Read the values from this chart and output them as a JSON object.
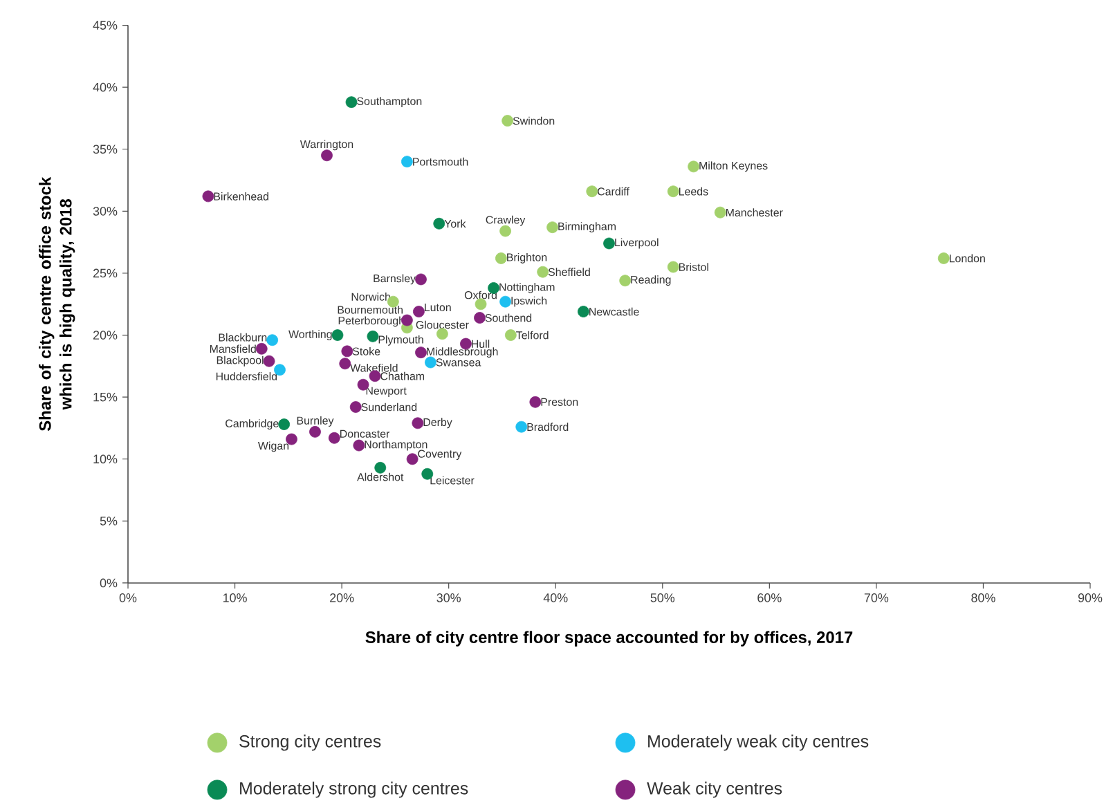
{
  "chart_data": {
    "type": "scatter",
    "xlabel": "Share of city centre floor space accounted for by offices,  2017",
    "ylabel": "Share of city centre office stock which is high quality,  2018",
    "xlim": [
      0,
      90
    ],
    "ylim": [
      0,
      45
    ],
    "xticks": [
      {
        "value": 0,
        "label": "0%"
      },
      {
        "value": 10,
        "label": "10%"
      },
      {
        "value": 20,
        "label": "20%"
      },
      {
        "value": 30,
        "label": "30%"
      },
      {
        "value": 40,
        "label": "40%"
      },
      {
        "value": 50,
        "label": "50%"
      },
      {
        "value": 60,
        "label": "60%"
      },
      {
        "value": 70,
        "label": "70%"
      },
      {
        "value": 80,
        "label": "80%"
      },
      {
        "value": 90,
        "label": "90%"
      }
    ],
    "yticks": [
      {
        "value": 0,
        "label": "0%"
      },
      {
        "value": 5,
        "label": "5%"
      },
      {
        "value": 10,
        "label": "10%"
      },
      {
        "value": 15,
        "label": "15%"
      },
      {
        "value": 20,
        "label": "20%"
      },
      {
        "value": 25,
        "label": "25%"
      },
      {
        "value": 30,
        "label": "30%"
      },
      {
        "value": 35,
        "label": "35%"
      },
      {
        "value": 40,
        "label": "40%"
      },
      {
        "value": 45,
        "label": "45%"
      }
    ],
    "grid": false,
    "legend": "bottom",
    "marker": "circle",
    "series": [
      {
        "name": "Strong city centres",
        "color": "#a3d16b",
        "x": [
          35.5,
          35.3,
          39.7,
          34.9,
          38.8,
          24.8,
          33.0,
          26.1,
          29.4,
          35.8,
          52.9,
          43.4,
          51.0,
          55.4,
          76.3,
          51.0,
          46.5
        ],
        "values": [
          37.3,
          28.4,
          28.7,
          26.2,
          25.1,
          22.7,
          22.5,
          20.6,
          20.1,
          20.0,
          33.6,
          31.6,
          31.6,
          29.9,
          26.2,
          25.5,
          24.4
        ]
      },
      {
        "name": "Moderately strong city centres",
        "color": "#0a8a55",
        "x": [
          20.9,
          29.1,
          34.2,
          42.6,
          45.0,
          19.6,
          22.9,
          14.6,
          23.6,
          28.0
        ],
        "values": [
          38.8,
          29.0,
          23.8,
          21.9,
          27.4,
          20.0,
          19.9,
          12.8,
          9.3,
          8.8
        ]
      },
      {
        "name": "Moderately weak city centres",
        "color": "#1ebff0",
        "x": [
          26.1,
          35.3,
          13.5,
          14.2,
          28.3,
          36.8
        ],
        "values": [
          34.0,
          22.7,
          19.6,
          17.2,
          17.8,
          12.6
        ]
      },
      {
        "name": "Weak city centres",
        "color": "#85237d",
        "x": [
          18.6,
          7.5,
          27.4,
          27.2,
          26.1,
          32.9,
          31.6,
          27.4,
          12.5,
          13.2,
          20.5,
          20.3,
          23.1,
          22.0,
          21.3,
          38.1,
          17.5,
          19.3,
          15.3,
          21.6,
          26.6,
          27.1
        ],
        "values": [
          34.5,
          31.2,
          24.5,
          21.9,
          21.2,
          21.4,
          19.3,
          18.6,
          18.9,
          17.9,
          18.7,
          17.7,
          16.7,
          16.0,
          14.2,
          14.6,
          12.2,
          11.7,
          11.6,
          11.1,
          10.0,
          12.9
        ]
      }
    ],
    "annotations": [
      {
        "text": "Swindon",
        "x": 35.5,
        "y": 37.3
      },
      {
        "text": "Crawley",
        "x": 35.3,
        "y": 28.4
      },
      {
        "text": "Birmingham",
        "x": 39.7,
        "y": 28.7
      },
      {
        "text": "Brighton",
        "x": 34.9,
        "y": 26.2
      },
      {
        "text": "Sheffield",
        "x": 38.8,
        "y": 25.1
      },
      {
        "text": "Norwich",
        "x": 24.8,
        "y": 22.7
      },
      {
        "text": "Oxford",
        "x": 33.0,
        "y": 22.5
      },
      {
        "text": "Peterborough",
        "x": 26.1,
        "y": 20.6
      },
      {
        "text": "Gloucester",
        "x": 29.4,
        "y": 20.1
      },
      {
        "text": "Telford",
        "x": 35.8,
        "y": 20.0
      },
      {
        "text": "Milton Keynes",
        "x": 52.9,
        "y": 33.6
      },
      {
        "text": "Cardiff",
        "x": 43.4,
        "y": 31.6
      },
      {
        "text": "Leeds",
        "x": 51.0,
        "y": 31.6
      },
      {
        "text": "Manchester",
        "x": 55.4,
        "y": 29.9
      },
      {
        "text": "London",
        "x": 76.3,
        "y": 26.2
      },
      {
        "text": "Bristol",
        "x": 51.0,
        "y": 25.5
      },
      {
        "text": "Reading",
        "x": 46.5,
        "y": 24.4
      },
      {
        "text": "Southampton",
        "x": 20.9,
        "y": 38.8
      },
      {
        "text": "York",
        "x": 29.1,
        "y": 29.0
      },
      {
        "text": "Nottingham",
        "x": 34.2,
        "y": 23.8
      },
      {
        "text": "Newcastle",
        "x": 42.6,
        "y": 21.9
      },
      {
        "text": "Liverpool",
        "x": 45.0,
        "y": 27.4
      },
      {
        "text": "Worthing",
        "x": 19.6,
        "y": 20.0
      },
      {
        "text": "Plymouth",
        "x": 22.9,
        "y": 19.9
      },
      {
        "text": "Cambridge",
        "x": 14.6,
        "y": 12.8
      },
      {
        "text": "Aldershot",
        "x": 23.6,
        "y": 9.3
      },
      {
        "text": "Leicester",
        "x": 28.0,
        "y": 8.8
      },
      {
        "text": "Portsmouth",
        "x": 26.1,
        "y": 34.0
      },
      {
        "text": "Ipswich",
        "x": 35.3,
        "y": 22.7
      },
      {
        "text": "Blackburn",
        "x": 13.5,
        "y": 19.6
      },
      {
        "text": "Huddersfield",
        "x": 14.2,
        "y": 17.2
      },
      {
        "text": "Swansea",
        "x": 28.3,
        "y": 17.8
      },
      {
        "text": "Bradford",
        "x": 36.8,
        "y": 12.6
      },
      {
        "text": "Warrington",
        "x": 18.6,
        "y": 34.5
      },
      {
        "text": "Birkenhead",
        "x": 7.5,
        "y": 31.2
      },
      {
        "text": "Barnsley",
        "x": 27.4,
        "y": 24.5
      },
      {
        "text": "Luton",
        "x": 27.2,
        "y": 21.9
      },
      {
        "text": "Bournemouth",
        "x": 26.1,
        "y": 21.2
      },
      {
        "text": "Southend",
        "x": 32.9,
        "y": 21.4
      },
      {
        "text": "Hull",
        "x": 31.6,
        "y": 19.3
      },
      {
        "text": "Middlesbrough",
        "x": 27.4,
        "y": 18.6
      },
      {
        "text": "Mansfield",
        "x": 12.5,
        "y": 18.9
      },
      {
        "text": "Blackpool",
        "x": 13.2,
        "y": 17.9
      },
      {
        "text": "Stoke",
        "x": 20.5,
        "y": 18.7
      },
      {
        "text": "Wakefield",
        "x": 20.3,
        "y": 17.7
      },
      {
        "text": "Chatham",
        "x": 23.1,
        "y": 16.7
      },
      {
        "text": "Newport",
        "x": 22.0,
        "y": 16.0
      },
      {
        "text": "Sunderland",
        "x": 21.3,
        "y": 14.2
      },
      {
        "text": "Preston",
        "x": 38.1,
        "y": 14.6
      },
      {
        "text": "Burnley",
        "x": 17.5,
        "y": 12.2
      },
      {
        "text": "Doncaster",
        "x": 19.3,
        "y": 11.7
      },
      {
        "text": "Wigan",
        "x": 15.3,
        "y": 11.6
      },
      {
        "text": "Northampton",
        "x": 21.6,
        "y": 11.1
      },
      {
        "text": "Coventry",
        "x": 26.6,
        "y": 10.0
      },
      {
        "text": "Derby",
        "x": 27.1,
        "y": 12.9
      }
    ]
  }
}
